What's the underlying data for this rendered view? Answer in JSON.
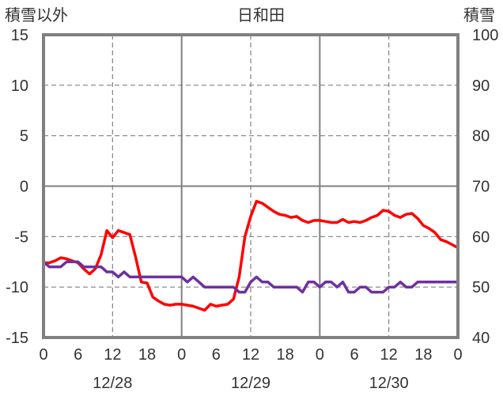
{
  "chart_data": {
    "type": "line",
    "title": "日和田",
    "left_axis_label": "積雪以外",
    "right_axis_label": "積雪",
    "left_ylim": [
      -15,
      15
    ],
    "left_ticks": [
      "15",
      "10",
      "5",
      "0",
      "-5",
      "-10",
      "-15"
    ],
    "right_ylim": [
      40,
      100
    ],
    "right_ticks": [
      "100",
      "90",
      "80",
      "70",
      "60",
      "50",
      "40"
    ],
    "x_range_hours": [
      0,
      72
    ],
    "x_ticks": [
      {
        "h": 0,
        "label": "0"
      },
      {
        "h": 6,
        "label": "6"
      },
      {
        "h": 12,
        "label": "12"
      },
      {
        "h": 18,
        "label": "18"
      },
      {
        "h": 24,
        "label": "0"
      },
      {
        "h": 30,
        "label": "6"
      },
      {
        "h": 36,
        "label": "12"
      },
      {
        "h": 42,
        "label": "18"
      },
      {
        "h": 48,
        "label": "0"
      },
      {
        "h": 54,
        "label": "6"
      },
      {
        "h": 60,
        "label": "12"
      },
      {
        "h": 66,
        "label": "18"
      },
      {
        "h": 72,
        "label": "0"
      }
    ],
    "dates": [
      {
        "h": 12,
        "label": "12/28"
      },
      {
        "h": 36,
        "label": "12/29"
      },
      {
        "h": 60,
        "label": "12/30"
      }
    ],
    "grid": true,
    "colors": {
      "temperature": "#ff0000",
      "snow_depth": "#7030a0",
      "frame": "#808080"
    },
    "series": [
      {
        "axis": "left",
        "color": "#ff0000",
        "points": [
          [
            0,
            -7.6
          ],
          [
            1,
            -7.6
          ],
          [
            2,
            -7.4
          ],
          [
            3,
            -7.1
          ],
          [
            4,
            -7.2
          ],
          [
            5,
            -7.4
          ],
          [
            6,
            -7.6
          ],
          [
            7,
            -8.2
          ],
          [
            8,
            -8.7
          ],
          [
            9,
            -8.2
          ],
          [
            10,
            -6.8
          ],
          [
            11,
            -4.4
          ],
          [
            12,
            -5.1
          ],
          [
            13,
            -4.4
          ],
          [
            14,
            -4.6
          ],
          [
            15,
            -4.8
          ],
          [
            16,
            -7.0
          ],
          [
            17,
            -9.5
          ],
          [
            18,
            -9.6
          ],
          [
            19,
            -11.0
          ],
          [
            20,
            -11.4
          ],
          [
            21,
            -11.7
          ],
          [
            22,
            -11.8
          ],
          [
            23,
            -11.7
          ],
          [
            24,
            -11.7
          ],
          [
            25,
            -11.8
          ],
          [
            26,
            -11.9
          ],
          [
            27,
            -12.1
          ],
          [
            28,
            -12.3
          ],
          [
            29,
            -11.7
          ],
          [
            30,
            -11.9
          ],
          [
            31,
            -11.8
          ],
          [
            32,
            -11.7
          ],
          [
            33,
            -11.2
          ],
          [
            34,
            -9.0
          ],
          [
            35,
            -5.0
          ],
          [
            36,
            -3.0
          ],
          [
            37,
            -1.5
          ],
          [
            38,
            -1.7
          ],
          [
            39,
            -2.1
          ],
          [
            40,
            -2.5
          ],
          [
            41,
            -2.8
          ],
          [
            42,
            -2.9
          ],
          [
            43,
            -3.1
          ],
          [
            44,
            -3.0
          ],
          [
            45,
            -3.4
          ],
          [
            46,
            -3.6
          ],
          [
            47,
            -3.4
          ],
          [
            48,
            -3.4
          ],
          [
            49,
            -3.5
          ],
          [
            50,
            -3.6
          ],
          [
            51,
            -3.6
          ],
          [
            52,
            -3.3
          ],
          [
            53,
            -3.6
          ],
          [
            54,
            -3.5
          ],
          [
            55,
            -3.6
          ],
          [
            56,
            -3.4
          ],
          [
            57,
            -3.1
          ],
          [
            58,
            -2.9
          ],
          [
            59,
            -2.4
          ],
          [
            60,
            -2.5
          ],
          [
            61,
            -2.9
          ],
          [
            62,
            -3.1
          ],
          [
            63,
            -2.8
          ],
          [
            64,
            -2.7
          ],
          [
            65,
            -3.2
          ],
          [
            66,
            -3.9
          ],
          [
            67,
            -4.2
          ],
          [
            68,
            -4.6
          ],
          [
            69,
            -5.3
          ],
          [
            70,
            -5.5
          ],
          [
            71,
            -5.8
          ],
          [
            72,
            -6.1
          ]
        ]
      },
      {
        "axis": "right",
        "color": "#7030a0",
        "points": [
          [
            0,
            55
          ],
          [
            1,
            54
          ],
          [
            2,
            54
          ],
          [
            3,
            54
          ],
          [
            4,
            55
          ],
          [
            5,
            55
          ],
          [
            6,
            55
          ],
          [
            7,
            54
          ],
          [
            8,
            54
          ],
          [
            9,
            54
          ],
          [
            10,
            54
          ],
          [
            11,
            53
          ],
          [
            12,
            53
          ],
          [
            13,
            52
          ],
          [
            14,
            53
          ],
          [
            15,
            52
          ],
          [
            16,
            52
          ],
          [
            17,
            52
          ],
          [
            18,
            52
          ],
          [
            19,
            52
          ],
          [
            20,
            52
          ],
          [
            21,
            52
          ],
          [
            22,
            52
          ],
          [
            23,
            52
          ],
          [
            24,
            52
          ],
          [
            25,
            51
          ],
          [
            26,
            52
          ],
          [
            27,
            51
          ],
          [
            28,
            50
          ],
          [
            29,
            50
          ],
          [
            30,
            50
          ],
          [
            31,
            50
          ],
          [
            32,
            50
          ],
          [
            33,
            50
          ],
          [
            34,
            49
          ],
          [
            35,
            49
          ],
          [
            36,
            51
          ],
          [
            37,
            52
          ],
          [
            38,
            51
          ],
          [
            39,
            51
          ],
          [
            40,
            50
          ],
          [
            41,
            50
          ],
          [
            42,
            50
          ],
          [
            43,
            50
          ],
          [
            44,
            50
          ],
          [
            45,
            49
          ],
          [
            46,
            51
          ],
          [
            47,
            51
          ],
          [
            48,
            50
          ],
          [
            49,
            51
          ],
          [
            50,
            51
          ],
          [
            51,
            50
          ],
          [
            52,
            51
          ],
          [
            53,
            49
          ],
          [
            54,
            49
          ],
          [
            55,
            50
          ],
          [
            56,
            50
          ],
          [
            57,
            49
          ],
          [
            58,
            49
          ],
          [
            59,
            49
          ],
          [
            60,
            50
          ],
          [
            61,
            50
          ],
          [
            62,
            51
          ],
          [
            63,
            50
          ],
          [
            64,
            50
          ],
          [
            65,
            51
          ],
          [
            66,
            51
          ],
          [
            67,
            51
          ],
          [
            68,
            51
          ],
          [
            69,
            51
          ],
          [
            70,
            51
          ],
          [
            71,
            51
          ],
          [
            72,
            51
          ]
        ]
      }
    ]
  }
}
